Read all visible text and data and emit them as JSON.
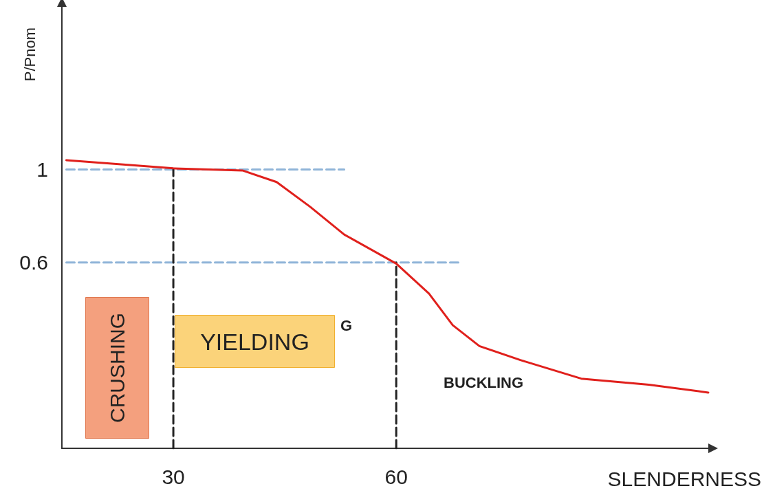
{
  "chart_data": {
    "type": "line",
    "xlabel": "SLENDERNESS",
    "ylabel": "P/Pnom",
    "xlim": [
      15,
      102
    ],
    "ylim": [
      -0.2,
      1.7
    ],
    "xticks": [
      30,
      60
    ],
    "yticks": [
      1,
      0.6
    ],
    "grid": false,
    "marker": "none",
    "series": [
      {
        "color": "#e0201c",
        "line_style": "solid",
        "x": [
          15.6,
          30,
          39.3,
          43.9,
          48.4,
          53,
          60,
          64.4,
          67.6,
          71.2,
          76.7,
          84.9,
          94,
          102
        ],
        "values": [
          1.04,
          1.005,
          0.996,
          0.946,
          0.84,
          0.72,
          0.595,
          0.466,
          0.33,
          0.24,
          0.18,
          0.1,
          0.074,
          0.04
        ]
      },
      {
        "color": "#8fb4d8",
        "line_style": "dashed",
        "x": [
          15.6,
          53
        ],
        "values": [
          1,
          1
        ]
      },
      {
        "color": "#8fb4d8",
        "line_style": "dashed",
        "x": [
          15.6,
          68.5
        ],
        "values": [
          0.6,
          0.6
        ]
      },
      {
        "color": "#222222",
        "line_style": "dashed",
        "x": [
          30,
          30
        ],
        "values": [
          -0.2,
          1
        ]
      },
      {
        "color": "#222222",
        "line_style": "dashed",
        "x": [
          60,
          60
        ],
        "values": [
          -0.2,
          0.6
        ]
      }
    ],
    "annotations": [
      "CRUSHING",
      "YIELDING",
      "G",
      "BUCKLING"
    ]
  }
}
